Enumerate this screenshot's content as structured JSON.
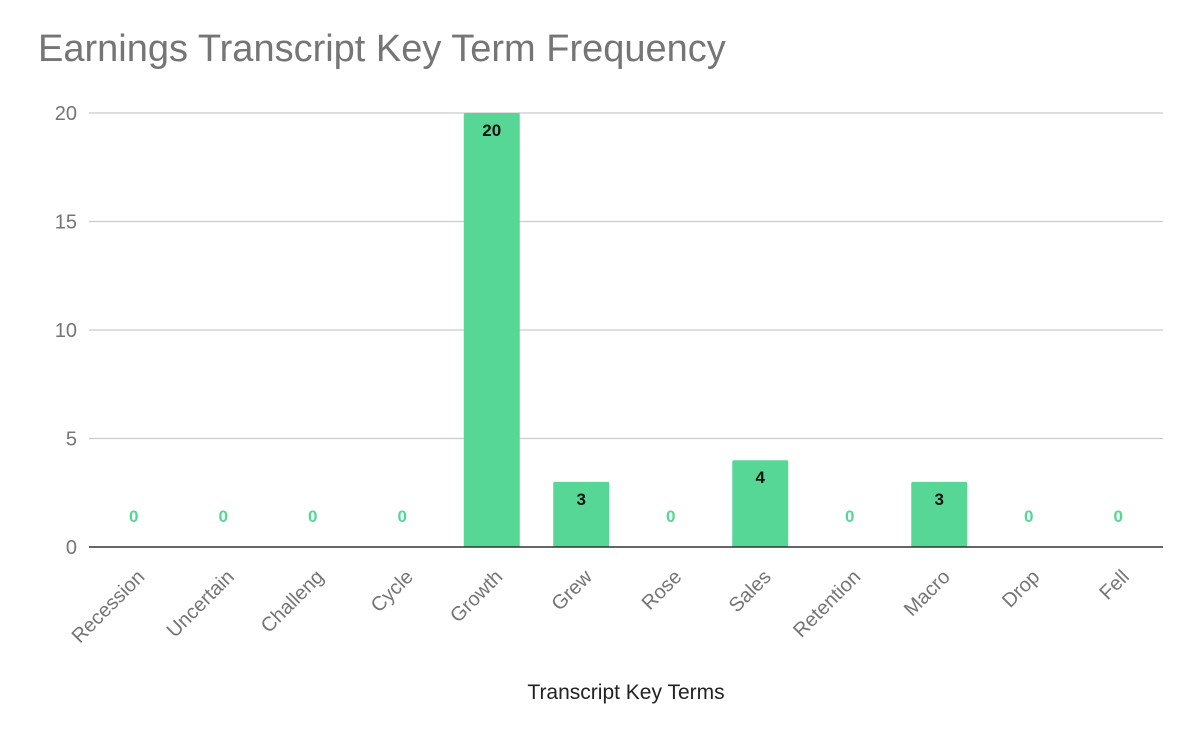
{
  "colors": {
    "bar": "#57d795",
    "grid": "#cccccc",
    "baseline": "#333333",
    "label_inside": "#111111",
    "label_zero": "#57d795"
  },
  "chart_data": {
    "type": "bar",
    "title": "Earnings Transcript Key Term Frequency",
    "xlabel": "Transcript Key Terms",
    "ylabel": "",
    "categories": [
      "Recession",
      "Uncertain",
      "Challeng",
      "Cycle",
      "Growth",
      "Grew",
      "Rose",
      "Sales",
      "Retention",
      "Macro",
      "Drop",
      "Fell"
    ],
    "values": [
      0,
      0,
      0,
      0,
      20,
      3,
      0,
      4,
      0,
      3,
      0,
      0
    ],
    "ylim": [
      0,
      20
    ],
    "yticks": [
      0,
      5,
      10,
      15,
      20
    ],
    "grid": true,
    "legend": "none",
    "data_labels": true
  }
}
